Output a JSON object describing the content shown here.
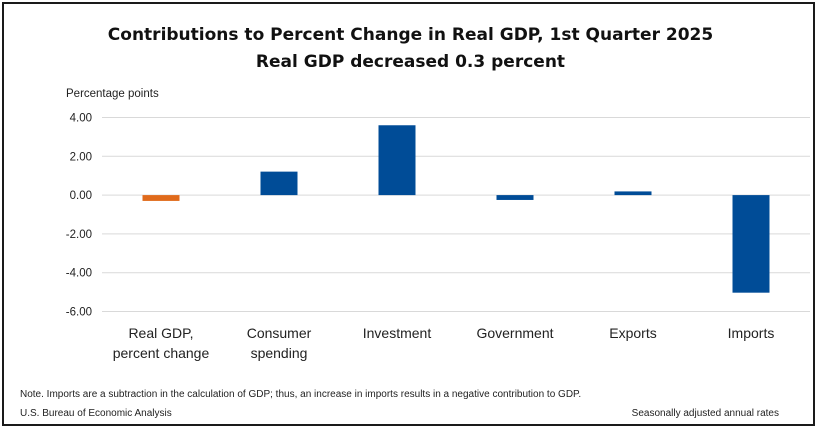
{
  "chart_data": {
    "type": "bar",
    "title": "Contributions to Percent Change in Real GDP, 1st Quarter 2025",
    "subtitle": "Real GDP decreased 0.3 percent",
    "ylabel": "Percentage points",
    "categories": [
      [
        "Real GDP,",
        "percent change"
      ],
      [
        "Consumer",
        "spending"
      ],
      [
        "Investment"
      ],
      [
        "Government"
      ],
      [
        "Exports"
      ],
      [
        "Imports"
      ]
    ],
    "values": [
      -0.3,
      1.21,
      3.6,
      -0.25,
      0.19,
      -5.03
    ],
    "bar_colors": [
      "#E06A1B",
      "#004C97",
      "#004C97",
      "#004C97",
      "#004C97",
      "#004C97"
    ],
    "yticks": [
      "4.00",
      "2.00",
      "0.00",
      "-2.00",
      "-4.00",
      "-6.00"
    ],
    "ylim": [
      -6,
      4
    ],
    "grid": true
  },
  "footer": {
    "note": "Note. Imports are a subtraction in the calculation of GDP; thus, an increase in imports results in a negative contribution to GDP.",
    "source": "U.S. Bureau of Economic Analysis",
    "rates": "Seasonally adjusted annual rates"
  }
}
